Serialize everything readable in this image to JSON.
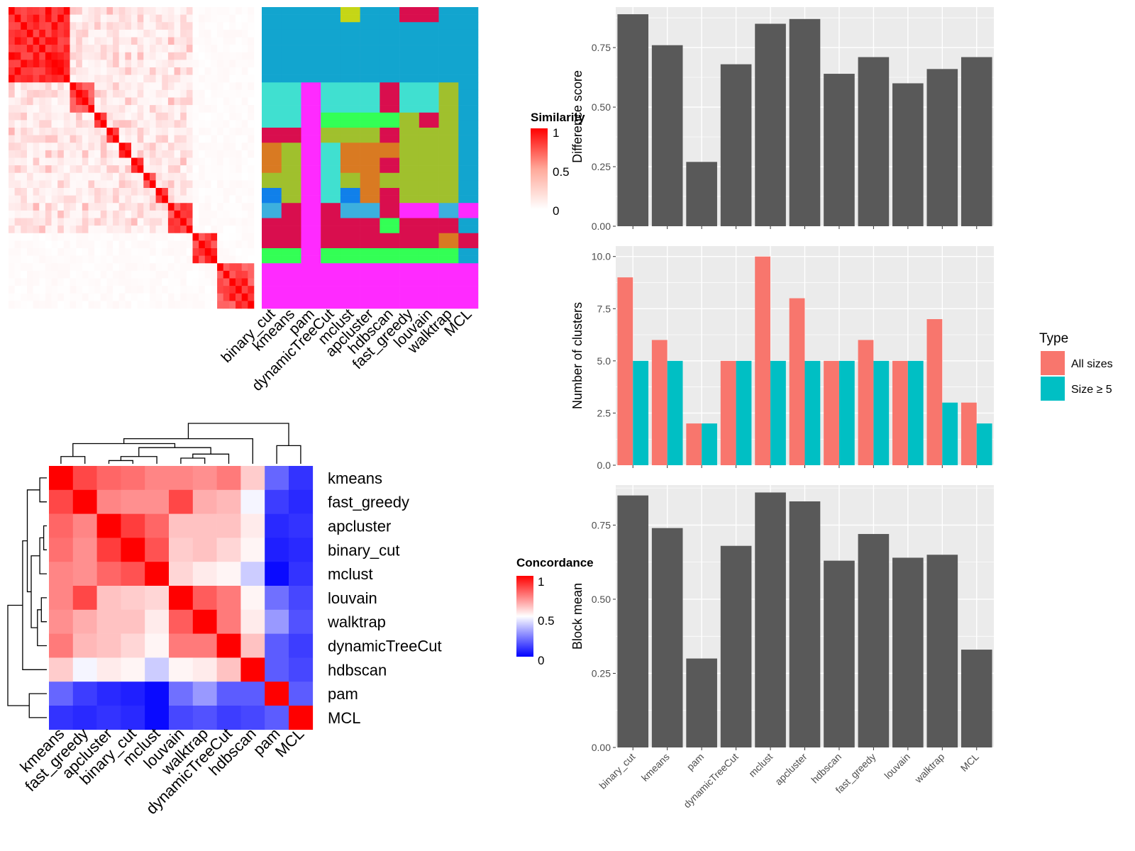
{
  "chart_data": [
    {
      "id": "similarity_heatmap",
      "type": "heatmap",
      "legend_title": "Similarity",
      "legend_ticks": [
        "1",
        "0.5",
        "0"
      ],
      "methods": [
        "binary_cut",
        "kmeans",
        "pam",
        "dynamicTreeCut",
        "mclust",
        "apcluster",
        "hdbscan",
        "fast_greedy",
        "louvain",
        "walktrap",
        "MCL"
      ],
      "cluster_colors": [
        "#12A5CF",
        "#40E0D0",
        "#A0C02D",
        "#D90E4E",
        "#33FF55",
        "#FF2AFF",
        "#D97A22",
        "#1080EA",
        "#3CB0DE",
        "#C5D616"
      ]
    },
    {
      "id": "concordance_heatmap",
      "type": "heatmap",
      "legend_title": "Concordance",
      "legend_ticks": [
        "1",
        "0.5",
        "0"
      ],
      "labels": [
        "kmeans",
        "fast_greedy",
        "apcluster",
        "binary_cut",
        "mclust",
        "louvain",
        "walktrap",
        "dynamicTreeCut",
        "hdbscan",
        "pam",
        "MCL"
      ],
      "matrix": [
        [
          1.0,
          0.86,
          0.8,
          0.78,
          0.74,
          0.74,
          0.72,
          0.76,
          0.6,
          0.2,
          0.1
        ],
        [
          0.86,
          1.0,
          0.74,
          0.72,
          0.72,
          0.86,
          0.66,
          0.64,
          0.48,
          0.12,
          0.08
        ],
        [
          0.8,
          0.74,
          1.0,
          0.88,
          0.8,
          0.62,
          0.62,
          0.62,
          0.54,
          0.08,
          0.1
        ],
        [
          0.78,
          0.72,
          0.88,
          1.0,
          0.84,
          0.6,
          0.62,
          0.58,
          0.52,
          0.06,
          0.08
        ],
        [
          0.74,
          0.72,
          0.8,
          0.84,
          1.0,
          0.58,
          0.54,
          0.52,
          0.4,
          0.02,
          0.1
        ],
        [
          0.74,
          0.86,
          0.62,
          0.6,
          0.58,
          1.0,
          0.82,
          0.76,
          0.52,
          0.22,
          0.14
        ],
        [
          0.72,
          0.66,
          0.62,
          0.62,
          0.54,
          0.82,
          1.0,
          0.76,
          0.54,
          0.3,
          0.16
        ],
        [
          0.76,
          0.64,
          0.62,
          0.58,
          0.52,
          0.76,
          0.76,
          1.0,
          0.62,
          0.18,
          0.12
        ],
        [
          0.6,
          0.48,
          0.54,
          0.52,
          0.4,
          0.52,
          0.54,
          0.62,
          1.0,
          0.18,
          0.14
        ],
        [
          0.2,
          0.12,
          0.08,
          0.06,
          0.02,
          0.22,
          0.3,
          0.18,
          0.18,
          1.0,
          0.18
        ],
        [
          0.1,
          0.08,
          0.1,
          0.08,
          0.02,
          0.14,
          0.16,
          0.12,
          0.14,
          0.18,
          1.0
        ]
      ]
    },
    {
      "id": "difference_score",
      "type": "bar",
      "categories": [
        "binary_cut",
        "kmeans",
        "pam",
        "dynamicTreeCut",
        "mclust",
        "apcluster",
        "hdbscan",
        "fast_greedy",
        "louvain",
        "walktrap",
        "MCL"
      ],
      "values": [
        0.89,
        0.76,
        0.27,
        0.68,
        0.85,
        0.87,
        0.64,
        0.71,
        0.6,
        0.66,
        0.71
      ],
      "ylabel": "Difference score",
      "ylim": [
        0,
        0.92
      ],
      "yticks": [
        "0.00",
        "0.25",
        "0.50",
        "0.75"
      ],
      "color": "#595959"
    },
    {
      "id": "number_of_clusters",
      "type": "bar",
      "categories": [
        "binary_cut",
        "kmeans",
        "pam",
        "dynamicTreeCut",
        "mclust",
        "apcluster",
        "hdbscan",
        "fast_greedy",
        "louvain",
        "walktrap",
        "MCL"
      ],
      "series": [
        {
          "name": "All sizes",
          "values": [
            9,
            6,
            2,
            5,
            10,
            8,
            5,
            6,
            5,
            7,
            3
          ],
          "color": "#F8766D"
        },
        {
          "name": "Size ≥ 5",
          "values": [
            5,
            5,
            2,
            5,
            5,
            5,
            5,
            5,
            5,
            3,
            2
          ],
          "color": "#00BFC4"
        }
      ],
      "ylabel": "Number of clusters",
      "ylim": [
        0,
        10.5
      ],
      "yticks": [
        "0.0",
        "2.5",
        "5.0",
        "7.5",
        "10.0"
      ],
      "legend_title": "Type",
      "legend_position": "right"
    },
    {
      "id": "block_mean",
      "type": "bar",
      "categories": [
        "binary_cut",
        "kmeans",
        "pam",
        "dynamicTreeCut",
        "mclust",
        "apcluster",
        "hdbscan",
        "fast_greedy",
        "louvain",
        "walktrap",
        "MCL"
      ],
      "values": [
        0.85,
        0.74,
        0.3,
        0.68,
        0.86,
        0.83,
        0.63,
        0.72,
        0.64,
        0.65,
        0.33
      ],
      "ylabel": "Block mean",
      "ylim": [
        0,
        0.885
      ],
      "yticks": [
        "0.00",
        "0.25",
        "0.50",
        "0.75"
      ],
      "color": "#595959"
    }
  ]
}
